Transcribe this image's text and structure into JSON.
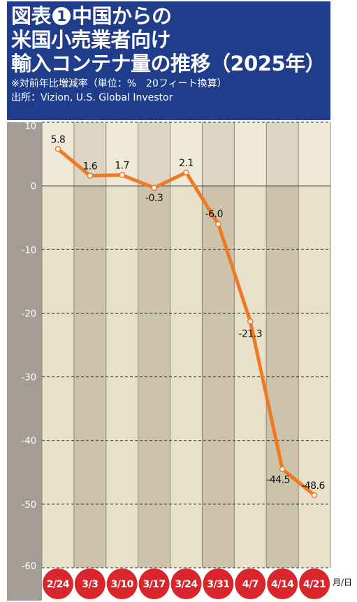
{
  "header": {
    "title_line1_a": "図表",
    "title_number": "1",
    "title_line1_b": "中国からの",
    "title_line2": "米国小売業者向け",
    "title_line3": "輸入コンテナ量の推移（2025年）",
    "subtitle": "※対前年比増減率（単位：%　20フィート換算）",
    "source": "出所：Vizion, U.S. Global Investor"
  },
  "x_unit_label": "月/日",
  "colors": {
    "header_bg": "#1f3d8a",
    "line": "#f07a22",
    "date_badge": "#d9252b",
    "band_light": "#e8e0c8",
    "band_dark": "#cdc3ab",
    "left_axis_band": "#a39d95"
  },
  "chart_data": {
    "type": "line",
    "categories": [
      "2/24",
      "3/3",
      "3/10",
      "3/17",
      "3/24",
      "3/31",
      "4/7",
      "4/14",
      "4/21"
    ],
    "values": [
      5.8,
      1.6,
      1.7,
      -0.3,
      2.1,
      -6.0,
      -21.3,
      -44.5,
      -48.6
    ],
    "data_labels": [
      "5.8",
      "1.6",
      "1.7",
      "-0.3",
      "2.1",
      "-6.0",
      "-21.3",
      "-44.5",
      "-48.6"
    ],
    "y_ticks": [
      10,
      0,
      -10,
      -20,
      -30,
      -40,
      -50,
      -60
    ],
    "y_tick_labels": [
      "10",
      "0",
      "-10",
      "-20",
      "-30",
      "-40",
      "-50",
      "-60"
    ],
    "ylim": [
      -60,
      10
    ],
    "grid": true,
    "legend": "none"
  }
}
